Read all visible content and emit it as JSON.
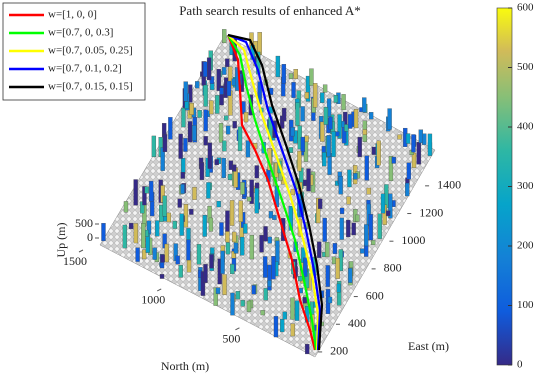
{
  "chart_data": {
    "type": "line3d",
    "title": "Path search results of enhanced A*",
    "xlabel": "East (m)",
    "xlim": [
      120,
      1500
    ],
    "xticks": [
      200,
      400,
      600,
      800,
      1000,
      1200,
      1400
    ],
    "ylabel": "North (m)",
    "ylim": [
      100,
      1500
    ],
    "yticks": [
      500,
      1000,
      1500
    ],
    "zlabel": "Up (m)",
    "zlim": [
      0,
      600
    ],
    "zticks": [
      0,
      500
    ],
    "colorbar": {
      "lim": [
        0,
        600
      ],
      "ticks": [
        0,
        100,
        200,
        300,
        400,
        500,
        600
      ]
    },
    "legend": "upper left",
    "series": [
      {
        "name": "w=[1, 0, 0]",
        "color": "#ff0000"
      },
      {
        "name": "w=[0.7, 0, 0.3]",
        "color": "#00ff00"
      },
      {
        "name": "w=[0.7, 0.05, 0.25]",
        "color": "#ffff00"
      },
      {
        "name": "w=[0.7, 0.1, 0.2]",
        "color": "#0000ff"
      },
      {
        "name": "w=[0.7, 0.15, 0.15]",
        "color": "#000000"
      }
    ]
  }
}
